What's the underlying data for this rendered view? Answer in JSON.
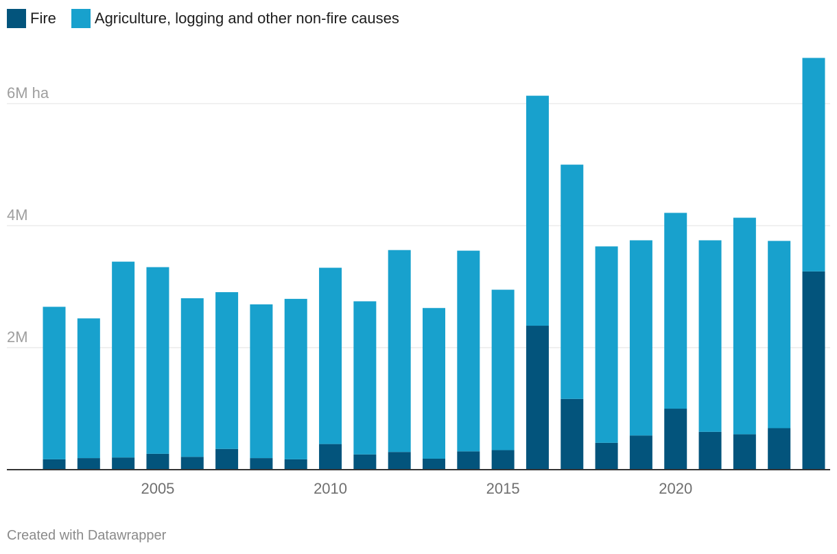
{
  "legend": [
    {
      "label": "Fire",
      "color": "#03547c"
    },
    {
      "label": "Agriculture, logging and other non-fire causes",
      "color": "#18a1cd"
    }
  ],
  "footer": "Created with Datawrapper",
  "chart_data": {
    "type": "bar",
    "stacked": true,
    "title": "",
    "xlabel": "",
    "ylabel": "",
    "x": [
      2002,
      2003,
      2004,
      2005,
      2006,
      2007,
      2008,
      2009,
      2010,
      2011,
      2012,
      2013,
      2014,
      2015,
      2016,
      2017,
      2018,
      2019,
      2020,
      2021,
      2022,
      2023,
      2024
    ],
    "series": [
      {
        "name": "Fire",
        "color": "#03547c",
        "values": [
          0.17,
          0.19,
          0.2,
          0.26,
          0.21,
          0.34,
          0.19,
          0.17,
          0.42,
          0.25,
          0.29,
          0.18,
          0.3,
          0.32,
          2.36,
          1.16,
          0.44,
          0.56,
          1.0,
          0.62,
          0.58,
          0.68,
          3.25
        ]
      },
      {
        "name": "Agriculture, logging and other non-fire causes",
        "color": "#18a1cd",
        "values": [
          2.5,
          2.29,
          3.21,
          3.06,
          2.6,
          2.57,
          2.52,
          2.63,
          2.89,
          2.51,
          3.31,
          2.47,
          3.29,
          2.63,
          3.77,
          3.84,
          3.22,
          3.2,
          3.21,
          3.14,
          3.55,
          3.07,
          3.5
        ]
      }
    ],
    "ylim": [
      0,
      6.8
    ],
    "yticks": [
      {
        "value": 2,
        "label": "2M"
      },
      {
        "value": 4,
        "label": "4M"
      },
      {
        "value": 6,
        "label": "6M ha"
      }
    ],
    "xticks": [
      {
        "value": 2005,
        "label": "2005"
      },
      {
        "value": 2010,
        "label": "2010"
      },
      {
        "value": 2015,
        "label": "2015"
      },
      {
        "value": 2020,
        "label": "2020"
      }
    ],
    "grid": true,
    "legend_position": "top-left"
  }
}
